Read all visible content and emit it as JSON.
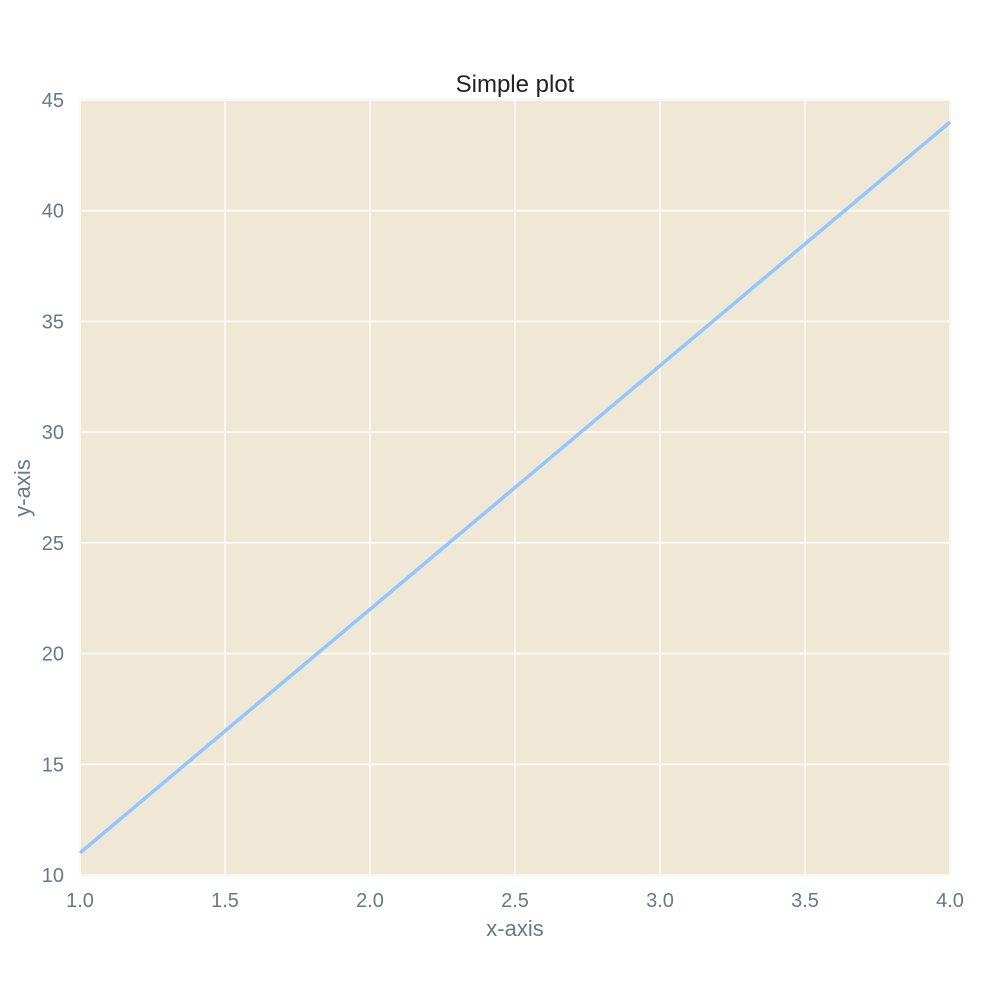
{
  "chart_data": {
    "type": "line",
    "title": "Simple plot",
    "xlabel": "x-axis",
    "ylabel": "y-axis",
    "xlim": [
      1.0,
      4.0
    ],
    "ylim": [
      10,
      45
    ],
    "x_ticks": [
      "1.0",
      "1.5",
      "2.0",
      "2.5",
      "3.0",
      "3.5",
      "4.0"
    ],
    "y_ticks": [
      "10",
      "15",
      "20",
      "25",
      "30",
      "35",
      "40",
      "45"
    ],
    "grid": true,
    "series": [
      {
        "x": [
          1,
          2,
          3,
          4
        ],
        "y": [
          11,
          22,
          33,
          44
        ],
        "color": "#92c6ff"
      }
    ],
    "background_color": "#efe8d6",
    "grid_color": "#fbf7ee"
  }
}
